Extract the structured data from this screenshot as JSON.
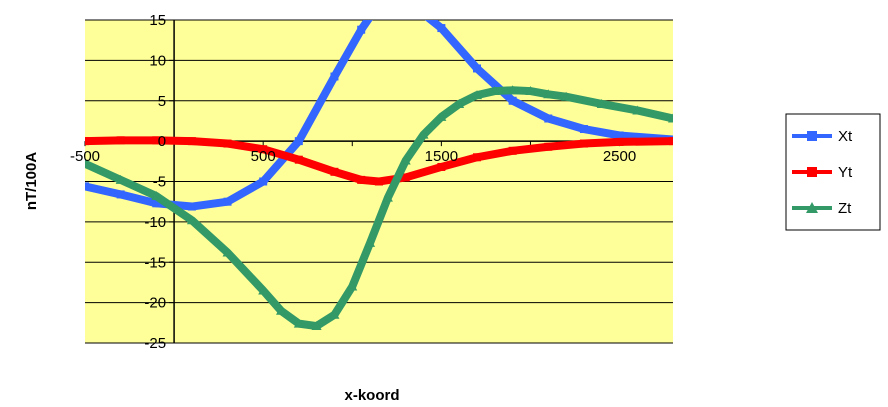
{
  "chart_data": {
    "type": "line",
    "title": "",
    "xlabel": "x-koord",
    "ylabel": "nT/100A",
    "xlim": [
      -500,
      2800
    ],
    "ylim": [
      -25,
      15
    ],
    "xticks": [
      -500,
      500,
      1500,
      2500
    ],
    "xtick_labels": [
      "-500",
      "500",
      "1500",
      "2500"
    ],
    "yticks": [
      15,
      10,
      5,
      0,
      -5,
      -10,
      -15,
      -20,
      -25
    ],
    "ytick_labels": [
      "15",
      "10",
      "5",
      "0",
      "-5",
      "-10",
      "-15",
      "-20",
      "-25"
    ],
    "grid": "horizontal",
    "legend": "right",
    "plot_background": "#ffff99",
    "series": [
      {
        "name": "Xt",
        "color": "#3366ff",
        "marker": "square",
        "x": [
          -500,
          -300,
          -100,
          100,
          300,
          500,
          700,
          900,
          1050,
          1150,
          1300,
          1500,
          1700,
          1900,
          2100,
          2300,
          2500,
          2800
        ],
        "y": [
          -5.6,
          -6.6,
          -7.7,
          -8.1,
          -7.5,
          -5.0,
          0.0,
          8.0,
          13.8,
          17.0,
          17.5,
          14.0,
          9.0,
          5.0,
          2.8,
          1.5,
          0.7,
          0.2
        ]
      },
      {
        "name": "Yt",
        "color": "#ff0000",
        "marker": "square",
        "x": [
          -500,
          -300,
          -100,
          100,
          300,
          500,
          700,
          900,
          1050,
          1150,
          1300,
          1500,
          1700,
          1900,
          2100,
          2300,
          2500,
          2800
        ],
        "y": [
          0.0,
          0.1,
          0.1,
          0.0,
          -0.3,
          -1.0,
          -2.3,
          -3.8,
          -4.8,
          -5.0,
          -4.5,
          -3.2,
          -2.0,
          -1.2,
          -0.7,
          -0.3,
          -0.1,
          0.0
        ]
      },
      {
        "name": "Zt",
        "color": "#339966",
        "marker": "triangle",
        "x": [
          -500,
          -300,
          -100,
          100,
          300,
          500,
          600,
          700,
          800,
          900,
          1000,
          1100,
          1200,
          1300,
          1400,
          1500,
          1600,
          1700,
          1800,
          1900,
          2000,
          2100,
          2200,
          2400,
          2600,
          2800
        ],
        "y": [
          -2.8,
          -4.8,
          -6.8,
          -9.8,
          -13.8,
          -18.5,
          -21.0,
          -22.6,
          -22.9,
          -21.5,
          -18.0,
          -12.6,
          -7.0,
          -2.4,
          0.8,
          3.0,
          4.6,
          5.7,
          6.2,
          6.3,
          6.2,
          5.8,
          5.5,
          4.6,
          3.8,
          2.8
        ]
      }
    ]
  }
}
